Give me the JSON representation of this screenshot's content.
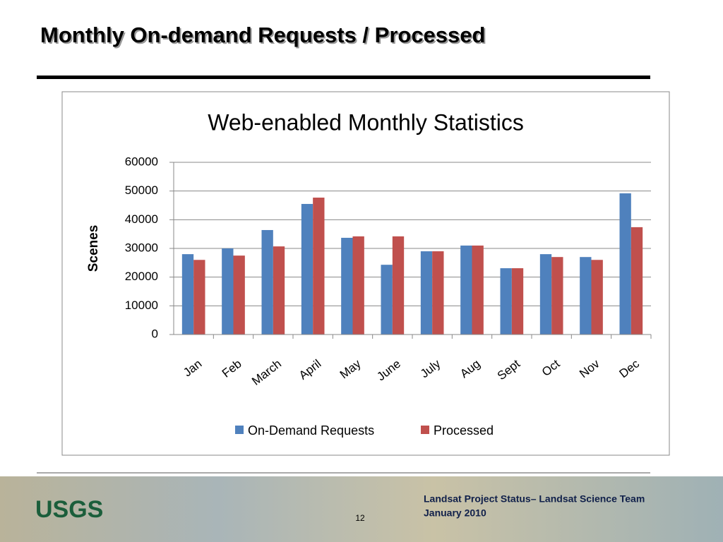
{
  "slide_title": "Monthly On-demand Requests / Processed",
  "chart_data": {
    "type": "bar",
    "title": "Web-enabled Monthly Statistics",
    "y_label": "Scenes",
    "categories": [
      "Jan",
      "Feb",
      "March",
      "April",
      "May",
      "June",
      "July",
      "Aug",
      "Sept",
      "Oct",
      "Nov",
      "Dec"
    ],
    "series": [
      {
        "name": "On-Demand Requests",
        "color": "#4f81bd",
        "values": [
          28000,
          30000,
          36400,
          45500,
          33700,
          24300,
          29000,
          31000,
          23100,
          28000,
          27000,
          49200
        ]
      },
      {
        "name": "Processed",
        "color": "#c0504d",
        "values": [
          26000,
          27500,
          30700,
          47700,
          34200,
          34200,
          29000,
          31000,
          23100,
          27000,
          26000,
          37400
        ]
      }
    ],
    "ylim": [
      0,
      60000
    ],
    "yticks": [
      0,
      10000,
      20000,
      30000,
      40000,
      50000,
      60000
    ],
    "grid": true,
    "legend": "bottom"
  },
  "footer": {
    "logo": "USGS",
    "page_number": "12",
    "line1": "Landsat Project Status– Landsat Science Team",
    "line2": "January 2010"
  }
}
